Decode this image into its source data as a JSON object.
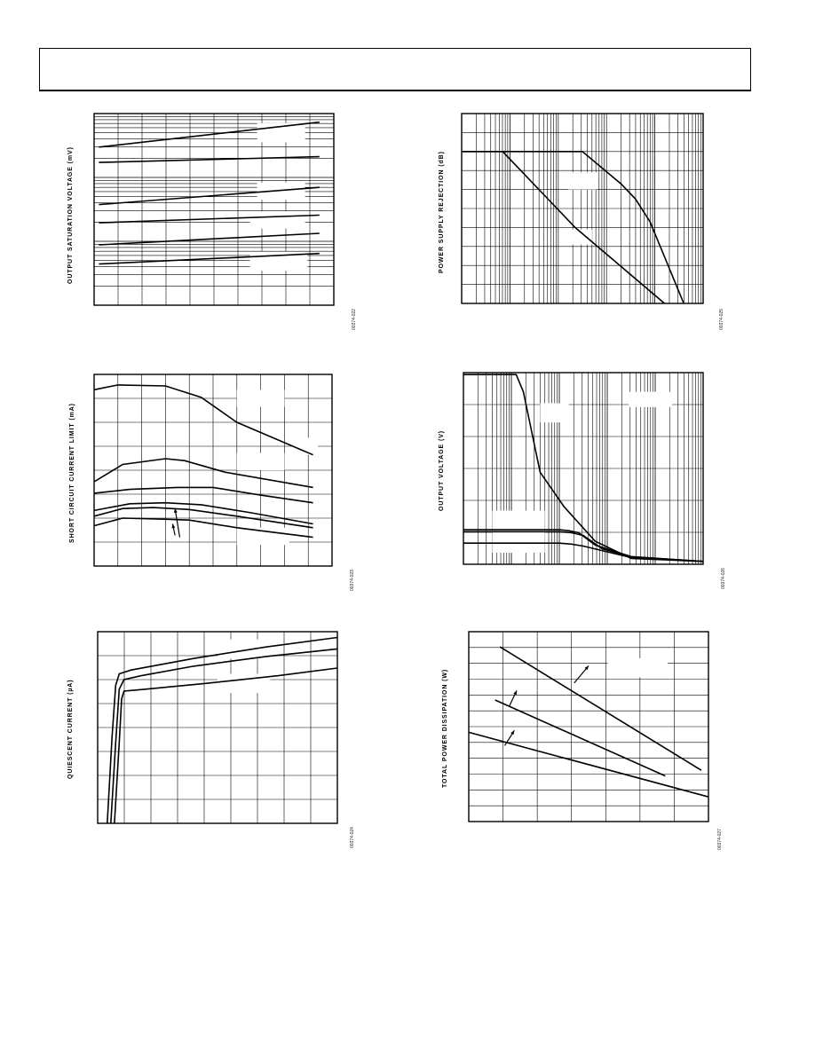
{
  "header": {
    "title": ""
  },
  "chart_data": [
    {
      "id": "c1",
      "type": "line",
      "ylabel": "OUTPUT SATURATION VOLTAGE (mV)",
      "figure_id": "00374-022",
      "grid": {
        "x_lines": 10,
        "log_y_decades": 3
      },
      "xlim": [
        0,
        1
      ],
      "ylim": [
        0,
        1
      ],
      "series": [
        {
          "x": [
            0.02,
            0.94
          ],
          "y": [
            0.825,
            0.955
          ]
        },
        {
          "x": [
            0.02,
            0.94
          ],
          "y": [
            0.745,
            0.775
          ]
        },
        {
          "x": [
            0.02,
            0.94
          ],
          "y": [
            0.525,
            0.615
          ]
        },
        {
          "x": [
            0.02,
            0.94
          ],
          "y": [
            0.43,
            0.47
          ]
        },
        {
          "x": [
            0.02,
            0.94
          ],
          "y": [
            0.315,
            0.375
          ]
        },
        {
          "x": [
            0.02,
            0.94
          ],
          "y": [
            0.215,
            0.27
          ]
        }
      ],
      "masks": [
        [
          0.68,
          0.85,
          0.2,
          0.1
        ],
        [
          0.68,
          0.55,
          0.2,
          0.09
        ],
        [
          0.65,
          0.4,
          0.23,
          0.09
        ],
        [
          0.65,
          0.18,
          0.24,
          0.1
        ]
      ]
    },
    {
      "id": "c2",
      "type": "line",
      "ylabel": "POWER SUPPLY REJECTION (dB)",
      "figure_id": "00374-025",
      "grid": {
        "log_x_decades": 5,
        "y_lines": 10
      },
      "xlim": [
        0,
        1
      ],
      "ylim": [
        0,
        1
      ],
      "series": [
        {
          "x": [
            0,
            0.17,
            0.47,
            0.84
          ],
          "y": [
            0.8,
            0.8,
            0.4,
            0
          ]
        },
        {
          "x": [
            0,
            0.5,
            0.66,
            0.72,
            0.78,
            0.92
          ],
          "y": [
            0.8,
            0.8,
            0.63,
            0.55,
            0.43,
            0
          ]
        }
      ],
      "masks": [
        [
          0.44,
          0.6,
          0.12,
          0.09
        ],
        [
          0.42,
          0.31,
          0.12,
          0.08
        ]
      ]
    },
    {
      "id": "c3",
      "type": "line",
      "ylabel": "SHORT CIRCUIT CURRENT LIMIT (mA)",
      "figure_id": "00374-023",
      "grid": {
        "x_lines": 10,
        "y_lines": 8
      },
      "xlim": [
        0,
        1
      ],
      "ylim": [
        0,
        1
      ],
      "series": [
        {
          "x": [
            0,
            0.1,
            0.3,
            0.45,
            0.6,
            0.92
          ],
          "y": [
            0.92,
            0.945,
            0.94,
            0.88,
            0.75,
            0.58
          ]
        },
        {
          "x": [
            0,
            0.12,
            0.3,
            0.38,
            0.55,
            0.92
          ],
          "y": [
            0.44,
            0.53,
            0.56,
            0.55,
            0.49,
            0.41
          ]
        },
        {
          "x": [
            0,
            0.15,
            0.35,
            0.5,
            0.7,
            0.92
          ],
          "y": [
            0.38,
            0.4,
            0.41,
            0.41,
            0.37,
            0.33
          ]
        },
        {
          "x": [
            0,
            0.15,
            0.3,
            0.45,
            0.65,
            0.92
          ],
          "y": [
            0.29,
            0.325,
            0.33,
            0.32,
            0.28,
            0.22
          ]
        },
        {
          "x": [
            0,
            0.12,
            0.25,
            0.4,
            0.6,
            0.92
          ],
          "y": [
            0.26,
            0.3,
            0.305,
            0.295,
            0.26,
            0.2
          ]
        },
        {
          "x": [
            0,
            0.12,
            0.28,
            0.4,
            0.6,
            0.92
          ],
          "y": [
            0.21,
            0.25,
            0.245,
            0.24,
            0.2,
            0.15
          ]
        }
      ],
      "masks": [
        [
          0.6,
          0.83,
          0.2,
          0.09
        ],
        [
          0.84,
          0.58,
          0.1,
          0.09
        ],
        [
          0.6,
          0.5,
          0.2,
          0.09
        ],
        [
          0.6,
          0.11,
          0.22,
          0.09
        ]
      ],
      "arrows": [
        [
          0.36,
          0.15,
          0.34,
          0.3
        ],
        [
          0.34,
          0.16,
          0.33,
          0.22
        ]
      ]
    },
    {
      "id": "c4",
      "type": "line",
      "ylabel": "OUTPUT VOLTAGE (V)",
      "figure_id": "00374-026",
      "grid": {
        "log_x_decades": 5,
        "y_lines": 6
      },
      "xlim": [
        0,
        1
      ],
      "ylim": [
        0,
        1
      ],
      "series": [
        {
          "x": [
            0,
            0.22,
            0.25,
            0.28,
            0.32,
            0.42,
            0.55,
            0.7,
            1
          ],
          "y": [
            0.99,
            0.99,
            0.9,
            0.72,
            0.48,
            0.3,
            0.12,
            0.03,
            0.015
          ]
        },
        {
          "x": [
            0,
            0.4,
            0.44,
            0.48,
            0.55,
            0.7,
            1
          ],
          "y": [
            0.18,
            0.18,
            0.175,
            0.165,
            0.1,
            0.04,
            0.015
          ]
        },
        {
          "x": [
            0,
            0.4,
            0.45,
            0.5,
            0.58,
            0.7,
            1
          ],
          "y": [
            0.17,
            0.17,
            0.165,
            0.15,
            0.08,
            0.04,
            0.015
          ]
        },
        {
          "x": [
            0,
            0.4,
            0.45,
            0.5,
            0.6,
            0.7,
            1
          ],
          "y": [
            0.11,
            0.11,
            0.105,
            0.095,
            0.065,
            0.035,
            0.015
          ]
        }
      ],
      "masks": [
        [
          0.69,
          0.82,
          0.18,
          0.08
        ],
        [
          0.32,
          0.74,
          0.12,
          0.1
        ],
        [
          0.12,
          0.06,
          0.22,
          0.22
        ]
      ]
    },
    {
      "id": "c5",
      "type": "line",
      "ylabel": "QUIESCENT CURRENT (µA)",
      "figure_id": "00374-024",
      "grid": {
        "x_lines": 9,
        "y_lines": 8
      },
      "xlim": [
        0,
        1
      ],
      "ylim": [
        0,
        1
      ],
      "series": [
        {
          "x": [
            0.04,
            0.06,
            0.075,
            0.09,
            0.14,
            0.4,
            0.7,
            1
          ],
          "y": [
            0,
            0.45,
            0.72,
            0.78,
            0.8,
            0.86,
            0.92,
            0.97
          ]
        },
        {
          "x": [
            0.055,
            0.075,
            0.09,
            0.11,
            0.18,
            0.4,
            0.7,
            1
          ],
          "y": [
            0,
            0.42,
            0.7,
            0.75,
            0.77,
            0.82,
            0.87,
            0.91
          ]
        },
        {
          "x": [
            0.07,
            0.09,
            0.1,
            0.11,
            0.2,
            0.45,
            0.75,
            1
          ],
          "y": [
            0,
            0.42,
            0.65,
            0.69,
            0.7,
            0.73,
            0.77,
            0.81
          ]
        }
      ],
      "masks": [
        [
          0.5,
          0.86,
          0.22,
          0.1
        ],
        [
          0.5,
          0.68,
          0.22,
          0.1
        ]
      ]
    },
    {
      "id": "c6",
      "type": "line",
      "ylabel": "TOTAL POWER DISSIPATION (W)",
      "figure_id": "00374-027",
      "grid": {
        "x_lines": 7,
        "y_lines": 12
      },
      "xlim": [
        0,
        1
      ],
      "ylim": [
        0,
        1
      ],
      "series": [
        {
          "x": [
            0.13,
            0.97
          ],
          "y": [
            0.92,
            0.27
          ]
        },
        {
          "x": [
            0.11,
            0.82
          ],
          "y": [
            0.64,
            0.24
          ]
        },
        {
          "x": [
            0,
            1
          ],
          "y": [
            0.47,
            0.13
          ]
        }
      ],
      "masks": [
        [
          0.58,
          0.76,
          0.25,
          0.1
        ]
      ],
      "arrows": [
        [
          0.44,
          0.73,
          0.5,
          0.82
        ],
        [
          0.17,
          0.61,
          0.2,
          0.69
        ],
        [
          0.15,
          0.4,
          0.19,
          0.48
        ]
      ]
    }
  ]
}
